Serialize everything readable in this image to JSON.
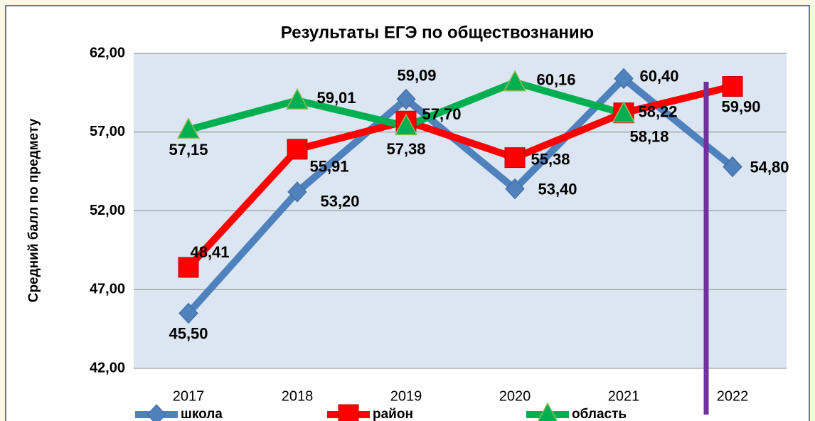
{
  "chart_data": {
    "type": "line",
    "title": "Результаты ЕГЭ по обществознанию",
    "y_label": "Средний балл по предмету",
    "categories": [
      "2017",
      "2018",
      "2019",
      "2020",
      "2021",
      "2022"
    ],
    "series": [
      {
        "name": "школа",
        "color": "#4f81bd",
        "marker": "diamond",
        "values": [
          45.5,
          53.2,
          59.09,
          53.4,
          60.4,
          54.8
        ],
        "value_labels": [
          "45,50",
          "53,20",
          "59,09",
          "53,40",
          "60,40",
          "54,80"
        ]
      },
      {
        "name": "район",
        "color": "#ff0000",
        "marker": "square",
        "values": [
          48.41,
          55.91,
          57.7,
          55.38,
          58.22,
          59.9
        ],
        "value_labels": [
          "48,41",
          "55,91",
          "57,70",
          "55,38",
          "58,22",
          "59,90"
        ]
      },
      {
        "name": "область",
        "color": "#00b050",
        "marker": "triangle",
        "values": [
          57.15,
          59.01,
          57.38,
          60.16,
          58.18,
          null
        ],
        "value_labels": [
          "57,15",
          "59,01",
          "57,38",
          "60,16",
          "58,18",
          null
        ]
      }
    ],
    "ylim": [
      42,
      62
    ],
    "yticks": [
      {
        "value": 42,
        "label": "42,00"
      },
      {
        "value": 47,
        "label": "47,00"
      },
      {
        "value": 52,
        "label": "52,00"
      },
      {
        "value": 57,
        "label": "57,00"
      },
      {
        "value": 62,
        "label": "62,00"
      }
    ],
    "grid": true,
    "legend": "bottom"
  }
}
